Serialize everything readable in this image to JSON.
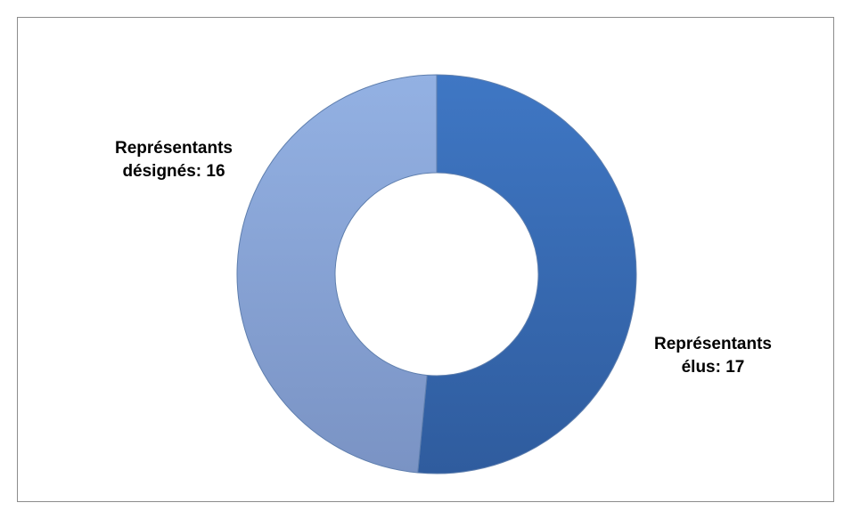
{
  "chart_data": {
    "type": "pie",
    "subtype": "doughnut",
    "title": "",
    "legend": "none",
    "slices": [
      {
        "name": "Représentants élus",
        "value": 17,
        "label_lines": [
          "Représentants",
          "élus: 17"
        ],
        "color": "#3a6cb4"
      },
      {
        "name": "Représentants désignés",
        "value": 16,
        "label_lines": [
          "Représentants",
          "désignés: 16"
        ],
        "color": "#86a4d6"
      }
    ]
  },
  "colors": {
    "frame_border": "#8c8c8c",
    "background": "#ffffff",
    "label_text": "#000000"
  }
}
